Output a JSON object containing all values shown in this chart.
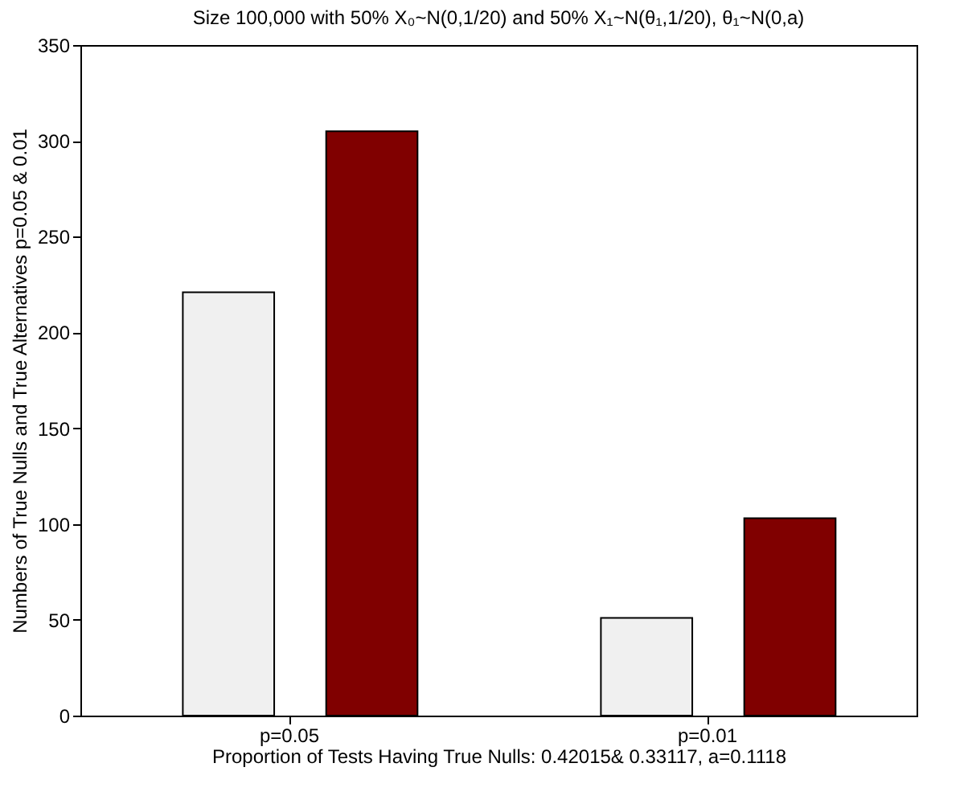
{
  "chart_data": {
    "type": "bar",
    "title": "Size 100,000 with 50% X₀~N(0,1/20) and 50% X₁~N(θ₁,1/20), θ₁~N(0,a)",
    "xlabel": "Proportion of Tests Having True Nulls: 0.42015& 0.33117, a=0.1118",
    "ylabel": "Numbers of True Nulls and True Alternatives p=0.05 & 0.01",
    "categories": [
      "p=0.05",
      "p=0.01"
    ],
    "series": [
      {
        "color": "#f0f0f0",
        "values": [
          221,
          51
        ]
      },
      {
        "color": "#800000",
        "values": [
          305,
          103
        ]
      }
    ],
    "ylim": [
      0,
      350
    ],
    "yticks": [
      0,
      50,
      100,
      150,
      200,
      250,
      300,
      350
    ],
    "grid": false,
    "legend": false
  }
}
